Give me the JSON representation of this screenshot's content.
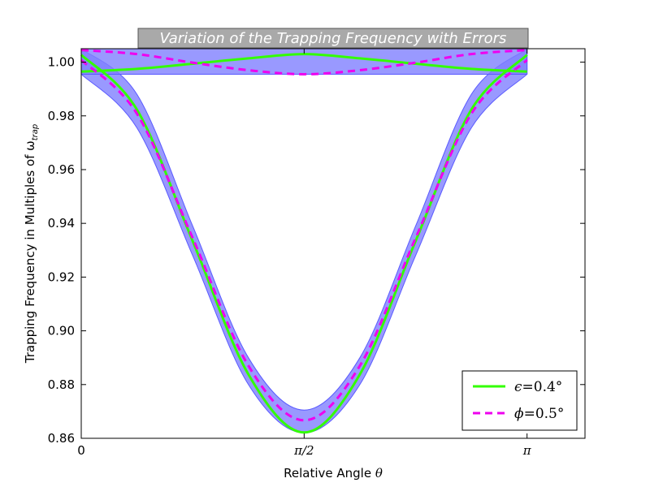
{
  "chart_data": {
    "type": "line",
    "title": "Variation of the Trapping Frequency with Errors",
    "xlabel": "Relative Angle θ",
    "ylabel": "Trapping Frequency in Multiples of ω",
    "ylabel_subscript": "trap",
    "xlim": [
      0,
      3.55
    ],
    "ylim": [
      0.86,
      1.005
    ],
    "x_ticks": [
      {
        "value": 0,
        "label": "0"
      },
      {
        "value": 1.5708,
        "label": "π/2"
      },
      {
        "value": 3.1416,
        "label": "π"
      }
    ],
    "y_ticks": [
      0.86,
      0.88,
      0.9,
      0.92,
      0.94,
      0.96,
      0.98,
      1.0
    ],
    "y_tick_labels": [
      "0.86",
      "0.88",
      "0.90",
      "0.92",
      "0.94",
      "0.96",
      "0.98",
      "1.00"
    ],
    "legend_position": "lower-right",
    "grid": false,
    "series": [
      {
        "name": "ϵ=0.4°",
        "label_symbol": "ϵ",
        "label_value": "=0.4°",
        "color": "#33ff00",
        "style": "solid",
        "curves": [
          {
            "x": [
              0,
              0.3927,
              0.7854,
              1.1781,
              1.5708,
              1.9635,
              2.3562,
              2.7489,
              3.1416
            ],
            "y": [
              1.0027,
              0.9823,
              0.9334,
              0.8838,
              0.8622,
              0.8838,
              0.9334,
              0.9823,
              1.0027
            ]
          },
          {
            "x": [
              0,
              0.3927,
              0.7854,
              1.1781,
              1.5708,
              1.9635,
              2.3562,
              2.7489,
              3.1416
            ],
            "y": [
              0.9965,
              0.9975,
              0.9994,
              1.0014,
              1.003,
              1.0014,
              0.9994,
              0.9975,
              0.9965
            ]
          }
        ]
      },
      {
        "name": "ϕ=0.5°",
        "label_symbol": "ϕ",
        "label_value": "=0.5°",
        "color": "#ee00ee",
        "style": "dashed",
        "curves": [
          {
            "x": [
              0,
              0.3927,
              0.7854,
              1.1781,
              1.5708,
              1.9635,
              2.3562,
              2.7489,
              3.1416
            ],
            "y": [
              1.0008,
              0.9808,
              0.9345,
              0.887,
              0.8667,
              0.887,
              0.9345,
              0.9808,
              1.0008
            ]
          },
          {
            "x": [
              0,
              0.3927,
              0.7854,
              1.1781,
              1.5708,
              1.9635,
              2.3562,
              2.7489,
              3.1416
            ],
            "y": [
              1.0045,
              1.003,
              0.9998,
              0.997,
              0.9955,
              0.997,
              0.9998,
              1.003,
              1.0045
            ]
          }
        ]
      }
    ],
    "error_bands": [
      {
        "x": [
          0,
          0.3927,
          0.7854,
          1.1781,
          1.5708,
          1.9635,
          2.3562,
          2.7489,
          3.1416
        ],
        "lower": [
          0.9955,
          0.9755,
          0.928,
          0.88,
          0.862,
          0.88,
          0.928,
          0.9755,
          0.9955
        ],
        "upper": [
          1.005,
          0.988,
          0.939,
          0.89,
          0.8705,
          0.89,
          0.939,
          0.988,
          1.005
        ]
      },
      {
        "x": [
          0,
          3.1416
        ],
        "lower": [
          0.9955,
          0.9955
        ],
        "upper": [
          1.005,
          1.005
        ]
      }
    ],
    "colors": {
      "band_fill": "#8080ff",
      "band_edge": "#5a5aff",
      "title_bg": "#a9a9a9",
      "title_text": "#ffffff"
    }
  }
}
